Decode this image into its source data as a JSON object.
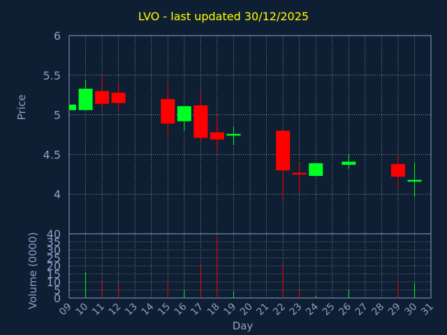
{
  "chart_data": {
    "type": "candlestick",
    "title": "LVO - last updated 30/12/2025",
    "xlabel": "Day",
    "ylabel_price": "Price",
    "ylabel_volume": "Volume (0000)",
    "x_ticks": [
      "09",
      "10",
      "11",
      "12",
      "13",
      "14",
      "15",
      "16",
      "17",
      "18",
      "19",
      "20",
      "21",
      "22",
      "23",
      "24",
      "25",
      "26",
      "27",
      "28",
      "29",
      "30",
      "31"
    ],
    "price_ticks": [
      "4",
      "4.5",
      "5",
      "5.5",
      "6"
    ],
    "price_ylim": [
      3.5,
      6
    ],
    "volume_ticks": [
      "0",
      "5",
      "10",
      "15",
      "20",
      "25",
      "30",
      "35",
      "40"
    ],
    "volume_ylim": [
      0,
      40
    ],
    "grid": true,
    "colors": {
      "background": "#0f1f33",
      "up": "#00ff22",
      "down": "#ff0000",
      "axis": "#8aa0c8",
      "grid": "#ffffff",
      "title": "#ffff00"
    },
    "candles": [
      {
        "day": "09",
        "open": 5.06,
        "close": 5.13,
        "high": 5.13,
        "low": 5.06,
        "volume": 0.5
      },
      {
        "day": "10",
        "open": 5.06,
        "close": 5.33,
        "high": 5.44,
        "low": 5.06,
        "volume": 16
      },
      {
        "day": "11",
        "open": 5.3,
        "close": 5.14,
        "high": 5.5,
        "low": 5.1,
        "volume": 10
      },
      {
        "day": "12",
        "open": 5.28,
        "close": 5.15,
        "high": 5.4,
        "low": 5.06,
        "volume": 9
      },
      {
        "day": "15",
        "open": 5.2,
        "close": 4.89,
        "high": 5.4,
        "low": 4.71,
        "volume": 10
      },
      {
        "day": "16",
        "open": 4.92,
        "close": 5.11,
        "high": 5.11,
        "low": 4.8,
        "volume": 5
      },
      {
        "day": "17",
        "open": 5.12,
        "close": 4.71,
        "high": 5.3,
        "low": 4.66,
        "volume": 21
      },
      {
        "day": "18",
        "open": 4.78,
        "close": 4.69,
        "high": 5.01,
        "low": 4.53,
        "volume": 38
      },
      {
        "day": "19",
        "open": 4.75,
        "close": 4.76,
        "high": 4.85,
        "low": 4.62,
        "volume": 4
      },
      {
        "day": "22",
        "open": 4.8,
        "close": 4.3,
        "high": 4.8,
        "low": 3.92,
        "volume": 22
      },
      {
        "day": "23",
        "open": 4.27,
        "close": 4.26,
        "high": 4.41,
        "low": 4.03,
        "volume": 5
      },
      {
        "day": "24",
        "open": 4.23,
        "close": 4.39,
        "high": 4.39,
        "low": 4.23,
        "volume": 1.5
      },
      {
        "day": "26",
        "open": 4.37,
        "close": 4.41,
        "high": 4.5,
        "low": 4.32,
        "volume": 5
      },
      {
        "day": "29",
        "open": 4.38,
        "close": 4.22,
        "high": 4.5,
        "low": 4.08,
        "volume": 10
      },
      {
        "day": "30",
        "open": 4.17,
        "close": 4.18,
        "high": 4.4,
        "low": 3.97,
        "volume": 9
      }
    ]
  }
}
